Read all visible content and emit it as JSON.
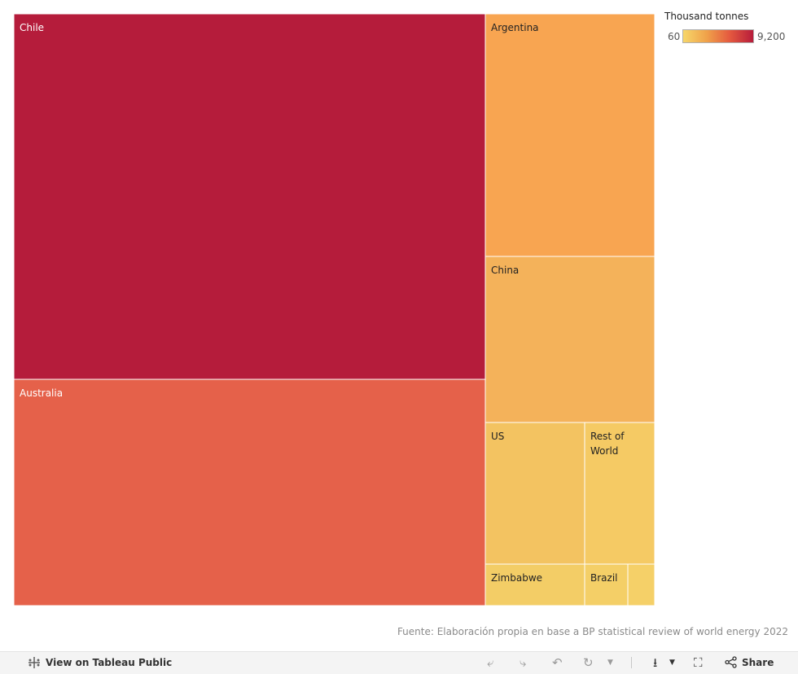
{
  "chart_data": {
    "type": "treemap",
    "legend": {
      "title": "Thousand tonnes",
      "min_label": "60",
      "max_label": "9,200",
      "min": 60,
      "max": 9200,
      "gradient_colors": [
        "#f6d66a",
        "#f0a24a",
        "#e4593f",
        "#b71c3b"
      ]
    },
    "items": [
      {
        "name": "Chile",
        "value": 9200,
        "label_color": "#ffffff",
        "color": "#b51c3b"
      },
      {
        "name": "Australia",
        "value": 5700,
        "label_color": "#ffffff",
        "color": "#e5614a"
      },
      {
        "name": "Argentina",
        "value": 2200,
        "label_color": "#222222",
        "color": "#f8a551"
      },
      {
        "name": "China",
        "value": 1500,
        "label_color": "#222222",
        "color": "#f4b25a"
      },
      {
        "name": "US",
        "value": 750,
        "label_color": "#222222",
        "color": "#f3c361"
      },
      {
        "name": "Rest of World",
        "value": 580,
        "label_color": "#222222",
        "color": "#f5ca64"
      },
      {
        "name": "Zimbabwe",
        "value": 230,
        "label_color": "#222222",
        "color": "#f3cd66"
      },
      {
        "name": "Brazil",
        "value": 95,
        "label_color": "#222222",
        "color": "#f4cf67"
      },
      {
        "name": "",
        "value": 60,
        "label_color": "#222222",
        "color": "#f5d068"
      }
    ]
  },
  "source_text": "Fuente: Elaboración propia en base a BP statistical review of world energy 2022",
  "toolbar": {
    "view_label": "View on Tableau Public",
    "share_label": "Share"
  },
  "icons": {
    "tableau": "tableau-logo-icon",
    "undo": "undo-icon",
    "redo": "redo-icon",
    "revert": "revert-icon",
    "refresh": "refresh-icon",
    "download": "download-icon",
    "fullscreen": "fullscreen-icon",
    "share": "share-icon"
  }
}
